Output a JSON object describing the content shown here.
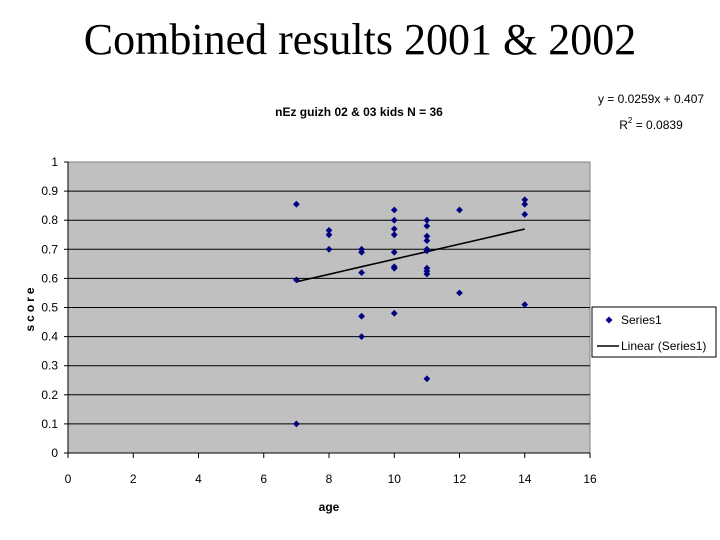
{
  "slide": {
    "title": "Combined results 2001 & 2002"
  },
  "chart_data": {
    "type": "scatter",
    "title": "nEz guizh 02 & 03 kids N = 36",
    "xlabel": "age",
    "ylabel": "score",
    "xlim": [
      0,
      16
    ],
    "ylim": [
      0,
      1
    ],
    "xticks": [
      "0",
      "2",
      "4",
      "6",
      "8",
      "10",
      "12",
      "14",
      "16"
    ],
    "yticks": [
      "0",
      "0.1",
      "0.2",
      "0.3",
      "0.4",
      "0.5",
      "0.6",
      "0.7",
      "0.8",
      "0.9",
      "1"
    ],
    "grid": "horizontal",
    "plot_background": "#c0c0c0",
    "point_color": "#000080",
    "trendline_color": "#000000",
    "legend_position": "right",
    "series": [
      {
        "name": "Series1",
        "marker": "diamond",
        "points": [
          [
            7,
            0.855
          ],
          [
            7,
            0.595
          ],
          [
            7,
            0.1
          ],
          [
            8,
            0.765
          ],
          [
            8,
            0.75
          ],
          [
            8,
            0.7
          ],
          [
            9,
            0.7
          ],
          [
            9,
            0.69
          ],
          [
            9,
            0.62
          ],
          [
            9,
            0.47
          ],
          [
            9,
            0.4
          ],
          [
            10,
            0.835
          ],
          [
            10,
            0.8
          ],
          [
            10,
            0.77
          ],
          [
            10,
            0.75
          ],
          [
            10,
            0.69
          ],
          [
            10,
            0.64
          ],
          [
            10,
            0.635
          ],
          [
            10,
            0.48
          ],
          [
            11,
            0.8
          ],
          [
            11,
            0.78
          ],
          [
            11,
            0.745
          ],
          [
            11,
            0.73
          ],
          [
            11,
            0.7
          ],
          [
            11,
            0.695
          ],
          [
            11,
            0.635
          ],
          [
            11,
            0.625
          ],
          [
            11,
            0.615
          ],
          [
            11,
            0.255
          ],
          [
            12,
            0.835
          ],
          [
            12,
            0.55
          ],
          [
            14,
            0.87
          ],
          [
            14,
            0.855
          ],
          [
            14,
            0.82
          ],
          [
            14,
            0.51
          ]
        ]
      },
      {
        "name": "Linear (Series1)",
        "type": "trendline",
        "slope": 0.0259,
        "intercept": 0.407,
        "x_range": [
          7,
          14
        ]
      }
    ],
    "trendline_equation": "y = 0.0259x + 0.407",
    "r_squared_label": "R",
    "r_squared_sup": "2",
    "r_squared_value": " = 0.0839"
  }
}
